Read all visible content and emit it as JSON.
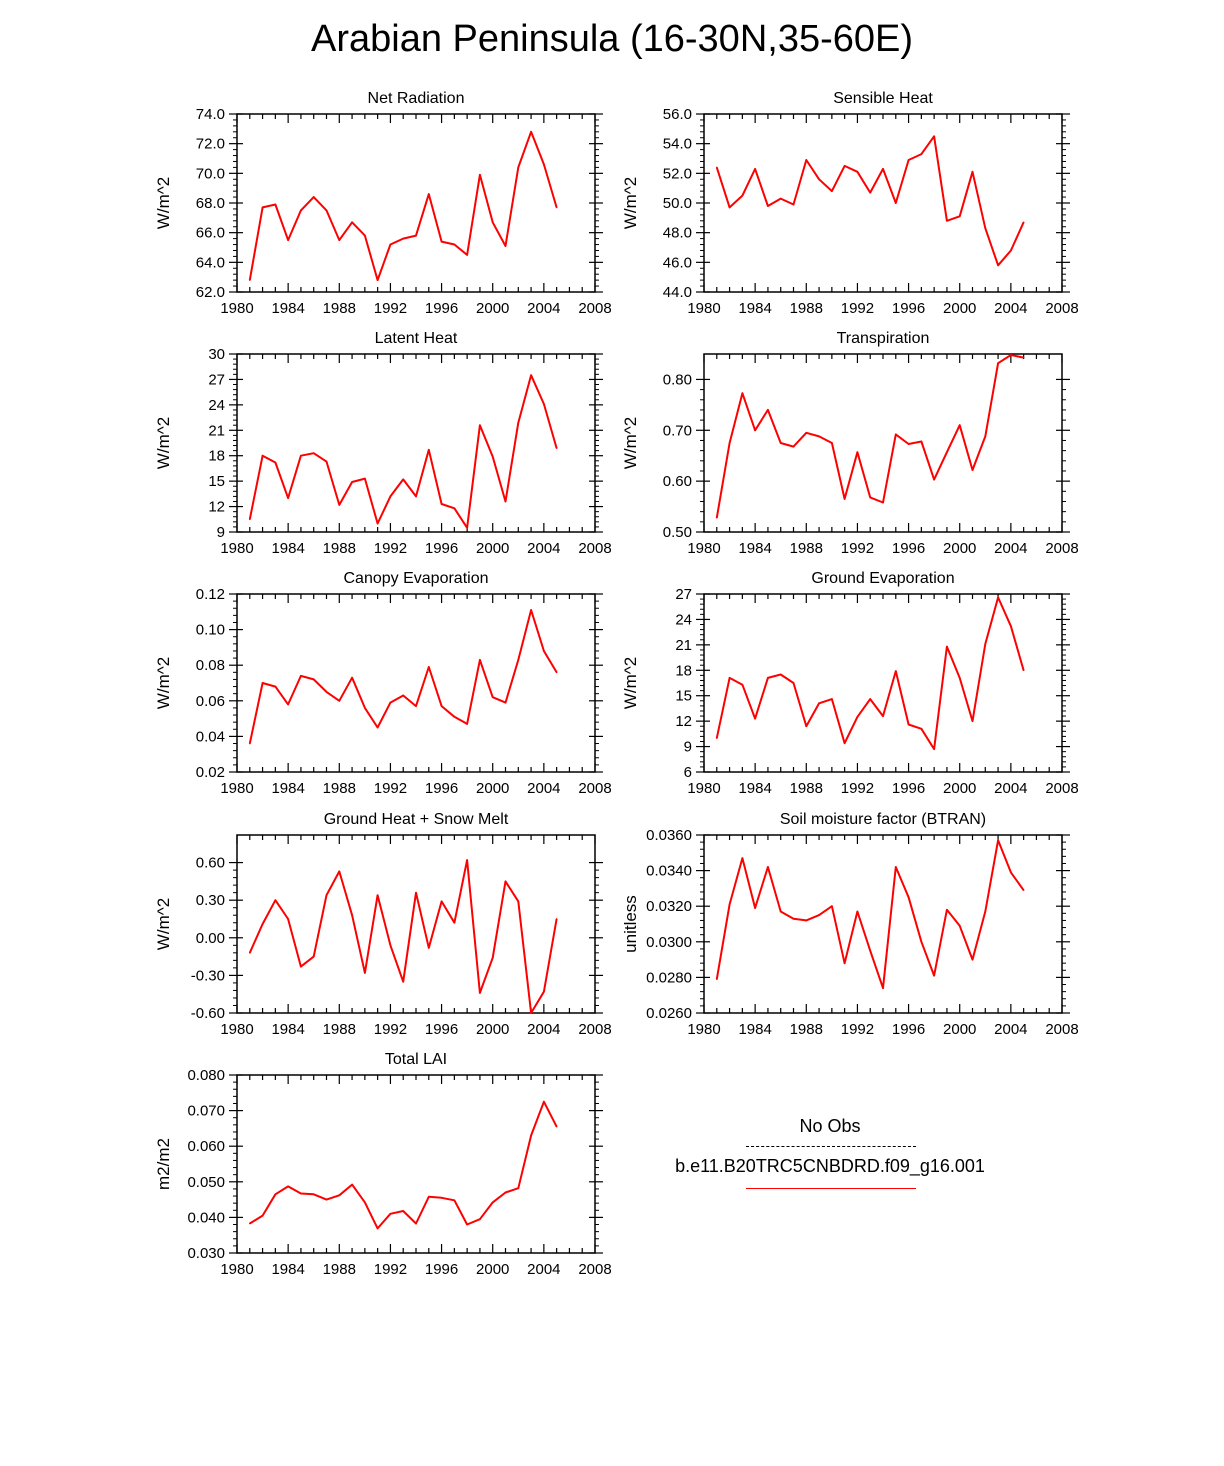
{
  "title": "Arabian Peninsula (16-30N,35-60E)",
  "line_color": "#ff0000",
  "legend": {
    "obs_label": "No Obs",
    "model_label": "b.e11.B20TRC5CNBDRD.f09_g16.001"
  },
  "chart_data": [
    {
      "type": "line",
      "title": "Net Radiation",
      "ylabel": "W/m^2",
      "xlim": [
        1980,
        2008
      ],
      "xticks": [
        "1980",
        "1984",
        "1988",
        "1992",
        "1996",
        "2000",
        "2004",
        "2008"
      ],
      "ylim": [
        62.0,
        74.0
      ],
      "yticks": [
        "62.0",
        "64.0",
        "66.0",
        "68.0",
        "70.0",
        "72.0",
        "74.0"
      ],
      "x": [
        1981,
        1982,
        1983,
        1984,
        1985,
        1986,
        1987,
        1988,
        1989,
        1990,
        1991,
        1992,
        1993,
        1994,
        1995,
        1996,
        1997,
        1998,
        1999,
        2000,
        2001,
        2002,
        2003,
        2004,
        2005
      ],
      "values": [
        62.8,
        67.7,
        67.9,
        65.5,
        67.5,
        68.4,
        67.5,
        65.5,
        66.7,
        65.8,
        62.8,
        65.2,
        65.6,
        65.8,
        68.6,
        65.4,
        65.2,
        64.5,
        69.9,
        66.7,
        65.1,
        70.4,
        72.8,
        70.6,
        67.7
      ]
    },
    {
      "type": "line",
      "title": "Sensible Heat",
      "ylabel": "W/m^2",
      "xlim": [
        1980,
        2008
      ],
      "xticks": [
        "1980",
        "1984",
        "1988",
        "1992",
        "1996",
        "2000",
        "2004",
        "2008"
      ],
      "ylim": [
        44.0,
        56.0
      ],
      "yticks": [
        "44.0",
        "46.0",
        "48.0",
        "50.0",
        "52.0",
        "54.0",
        "56.0"
      ],
      "x": [
        1981,
        1982,
        1983,
        1984,
        1985,
        1986,
        1987,
        1988,
        1989,
        1990,
        1991,
        1992,
        1993,
        1994,
        1995,
        1996,
        1997,
        1998,
        1999,
        2000,
        2001,
        2002,
        2003,
        2004,
        2005
      ],
      "values": [
        52.4,
        49.7,
        50.5,
        52.3,
        49.8,
        50.3,
        49.9,
        52.9,
        51.6,
        50.8,
        52.5,
        52.1,
        50.7,
        52.3,
        50.0,
        52.9,
        53.3,
        54.5,
        48.8,
        49.1,
        52.1,
        48.3,
        45.8,
        46.8,
        48.7
      ]
    },
    {
      "type": "line",
      "title": "Latent Heat",
      "ylabel": "W/m^2",
      "xlim": [
        1980,
        2008
      ],
      "xticks": [
        "1980",
        "1984",
        "1988",
        "1992",
        "1996",
        "2000",
        "2004",
        "2008"
      ],
      "ylim": [
        9,
        30
      ],
      "yticks": [
        "9",
        "12",
        "15",
        "18",
        "21",
        "24",
        "27",
        "30"
      ],
      "x": [
        1981,
        1982,
        1983,
        1984,
        1985,
        1986,
        1987,
        1988,
        1989,
        1990,
        1991,
        1992,
        1993,
        1994,
        1995,
        1996,
        1997,
        1998,
        1999,
        2000,
        2001,
        2002,
        2003,
        2004,
        2005
      ],
      "values": [
        10.5,
        18.0,
        17.2,
        13.0,
        18.0,
        18.3,
        17.3,
        12.2,
        14.9,
        15.3,
        10.0,
        13.2,
        15.2,
        13.2,
        18.7,
        12.3,
        11.8,
        9.5,
        21.6,
        17.9,
        12.6,
        21.9,
        27.5,
        24.1,
        18.9
      ]
    },
    {
      "type": "line",
      "title": "Transpiration",
      "ylabel": "W/m^2",
      "xlim": [
        1980,
        2008
      ],
      "xticks": [
        "1980",
        "1984",
        "1988",
        "1992",
        "1996",
        "2000",
        "2004",
        "2008"
      ],
      "ylim": [
        0.5,
        0.85
      ],
      "yticks": [
        "0.50",
        "0.60",
        "0.70",
        "0.80"
      ],
      "x": [
        1981,
        1982,
        1983,
        1984,
        1985,
        1986,
        1987,
        1988,
        1989,
        1990,
        1991,
        1992,
        1993,
        1994,
        1995,
        1996,
        1997,
        1998,
        1999,
        2000,
        2001,
        2002,
        2003,
        2004,
        2005
      ],
      "values": [
        0.528,
        0.675,
        0.773,
        0.7,
        0.74,
        0.675,
        0.668,
        0.695,
        0.688,
        0.675,
        0.565,
        0.657,
        0.568,
        0.558,
        0.692,
        0.673,
        0.678,
        0.603,
        0.657,
        0.71,
        0.622,
        0.688,
        0.832,
        0.848,
        0.843
      ]
    },
    {
      "type": "line",
      "title": "Canopy Evaporation",
      "ylabel": "W/m^2",
      "xlim": [
        1980,
        2008
      ],
      "xticks": [
        "1980",
        "1984",
        "1988",
        "1992",
        "1996",
        "2000",
        "2004",
        "2008"
      ],
      "ylim": [
        0.02,
        0.12
      ],
      "yticks": [
        "0.02",
        "0.04",
        "0.06",
        "0.08",
        "0.10",
        "0.12"
      ],
      "x": [
        1981,
        1982,
        1983,
        1984,
        1985,
        1986,
        1987,
        1988,
        1989,
        1990,
        1991,
        1992,
        1993,
        1994,
        1995,
        1996,
        1997,
        1998,
        1999,
        2000,
        2001,
        2002,
        2003,
        2004,
        2005
      ],
      "values": [
        0.036,
        0.07,
        0.068,
        0.058,
        0.074,
        0.072,
        0.065,
        0.06,
        0.073,
        0.056,
        0.045,
        0.059,
        0.063,
        0.057,
        0.079,
        0.057,
        0.051,
        0.047,
        0.083,
        0.062,
        0.059,
        0.083,
        0.111,
        0.088,
        0.076
      ]
    },
    {
      "type": "line",
      "title": "Ground Evaporation",
      "ylabel": "W/m^2",
      "xlim": [
        1980,
        2008
      ],
      "xticks": [
        "1980",
        "1984",
        "1988",
        "1992",
        "1996",
        "2000",
        "2004",
        "2008"
      ],
      "ylim": [
        6,
        27
      ],
      "yticks": [
        "6",
        "9",
        "12",
        "15",
        "18",
        "21",
        "24",
        "27"
      ],
      "x": [
        1981,
        1982,
        1983,
        1984,
        1985,
        1986,
        1987,
        1988,
        1989,
        1990,
        1991,
        1992,
        1993,
        1994,
        1995,
        1996,
        1997,
        1998,
        1999,
        2000,
        2001,
        2002,
        2003,
        2004,
        2005
      ],
      "values": [
        10.0,
        17.1,
        16.3,
        12.3,
        17.1,
        17.5,
        16.5,
        11.4,
        14.1,
        14.6,
        9.4,
        12.5,
        14.6,
        12.6,
        17.9,
        11.6,
        11.1,
        8.7,
        20.8,
        17.1,
        12.0,
        21.1,
        26.6,
        23.2,
        18.0
      ]
    },
    {
      "type": "line",
      "title": "Ground Heat + Snow Melt",
      "ylabel": "W/m^2",
      "xlim": [
        1980,
        2008
      ],
      "xticks": [
        "1980",
        "1984",
        "1988",
        "1992",
        "1996",
        "2000",
        "2004",
        "2008"
      ],
      "ylim": [
        -0.6,
        0.82
      ],
      "yticks": [
        "-0.60",
        "-0.30",
        "0.00",
        "0.30",
        "0.60"
      ],
      "ytick_values": [
        -0.6,
        -0.3,
        0.0,
        0.3,
        0.6
      ],
      "x": [
        1981,
        1982,
        1983,
        1984,
        1985,
        1986,
        1987,
        1988,
        1989,
        1990,
        1991,
        1992,
        1993,
        1994,
        1995,
        1996,
        1997,
        1998,
        1999,
        2000,
        2001,
        2002,
        2003,
        2004,
        2005
      ],
      "values": [
        -0.12,
        0.11,
        0.3,
        0.15,
        -0.23,
        -0.15,
        0.34,
        0.53,
        0.18,
        -0.28,
        0.34,
        -0.06,
        -0.35,
        0.36,
        -0.08,
        0.29,
        0.12,
        0.62,
        -0.44,
        -0.16,
        0.45,
        0.29,
        -0.6,
        -0.43,
        0.15
      ]
    },
    {
      "type": "line",
      "title": "Soil moisture factor (BTRAN)",
      "ylabel": "unitless",
      "xlim": [
        1980,
        2008
      ],
      "xticks": [
        "1980",
        "1984",
        "1988",
        "1992",
        "1996",
        "2000",
        "2004",
        "2008"
      ],
      "ylim": [
        0.026,
        0.036
      ],
      "yticks": [
        "0.0260",
        "0.0280",
        "0.0300",
        "0.0320",
        "0.0340",
        "0.0360"
      ],
      "x": [
        1981,
        1982,
        1983,
        1984,
        1985,
        1986,
        1987,
        1988,
        1989,
        1990,
        1991,
        1992,
        1993,
        1994,
        1995,
        1996,
        1997,
        1998,
        1999,
        2000,
        2001,
        2002,
        2003,
        2004,
        2005
      ],
      "values": [
        0.0279,
        0.0321,
        0.0347,
        0.0319,
        0.0342,
        0.0317,
        0.0313,
        0.0312,
        0.0315,
        0.032,
        0.0288,
        0.0317,
        0.0295,
        0.0274,
        0.0342,
        0.0325,
        0.03,
        0.0281,
        0.0318,
        0.0309,
        0.029,
        0.0317,
        0.0357,
        0.0339,
        0.0329
      ]
    },
    {
      "type": "line",
      "title": "Total LAI",
      "ylabel": "m2/m2",
      "xlim": [
        1980,
        2008
      ],
      "xticks": [
        "1980",
        "1984",
        "1988",
        "1992",
        "1996",
        "2000",
        "2004",
        "2008"
      ],
      "ylim": [
        0.03,
        0.08
      ],
      "yticks": [
        "0.030",
        "0.040",
        "0.050",
        "0.060",
        "0.070",
        "0.080"
      ],
      "x": [
        1981,
        1982,
        1983,
        1984,
        1985,
        1986,
        1987,
        1988,
        1989,
        1990,
        1991,
        1992,
        1993,
        1994,
        1995,
        1996,
        1997,
        1998,
        1999,
        2000,
        2001,
        2002,
        2003,
        2004,
        2005
      ],
      "values": [
        0.0383,
        0.0405,
        0.0465,
        0.0487,
        0.0467,
        0.0465,
        0.045,
        0.0462,
        0.0492,
        0.0442,
        0.0369,
        0.041,
        0.0418,
        0.0383,
        0.0458,
        0.0455,
        0.0448,
        0.038,
        0.0395,
        0.0442,
        0.047,
        0.0482,
        0.063,
        0.0725,
        0.0655
      ]
    }
  ]
}
